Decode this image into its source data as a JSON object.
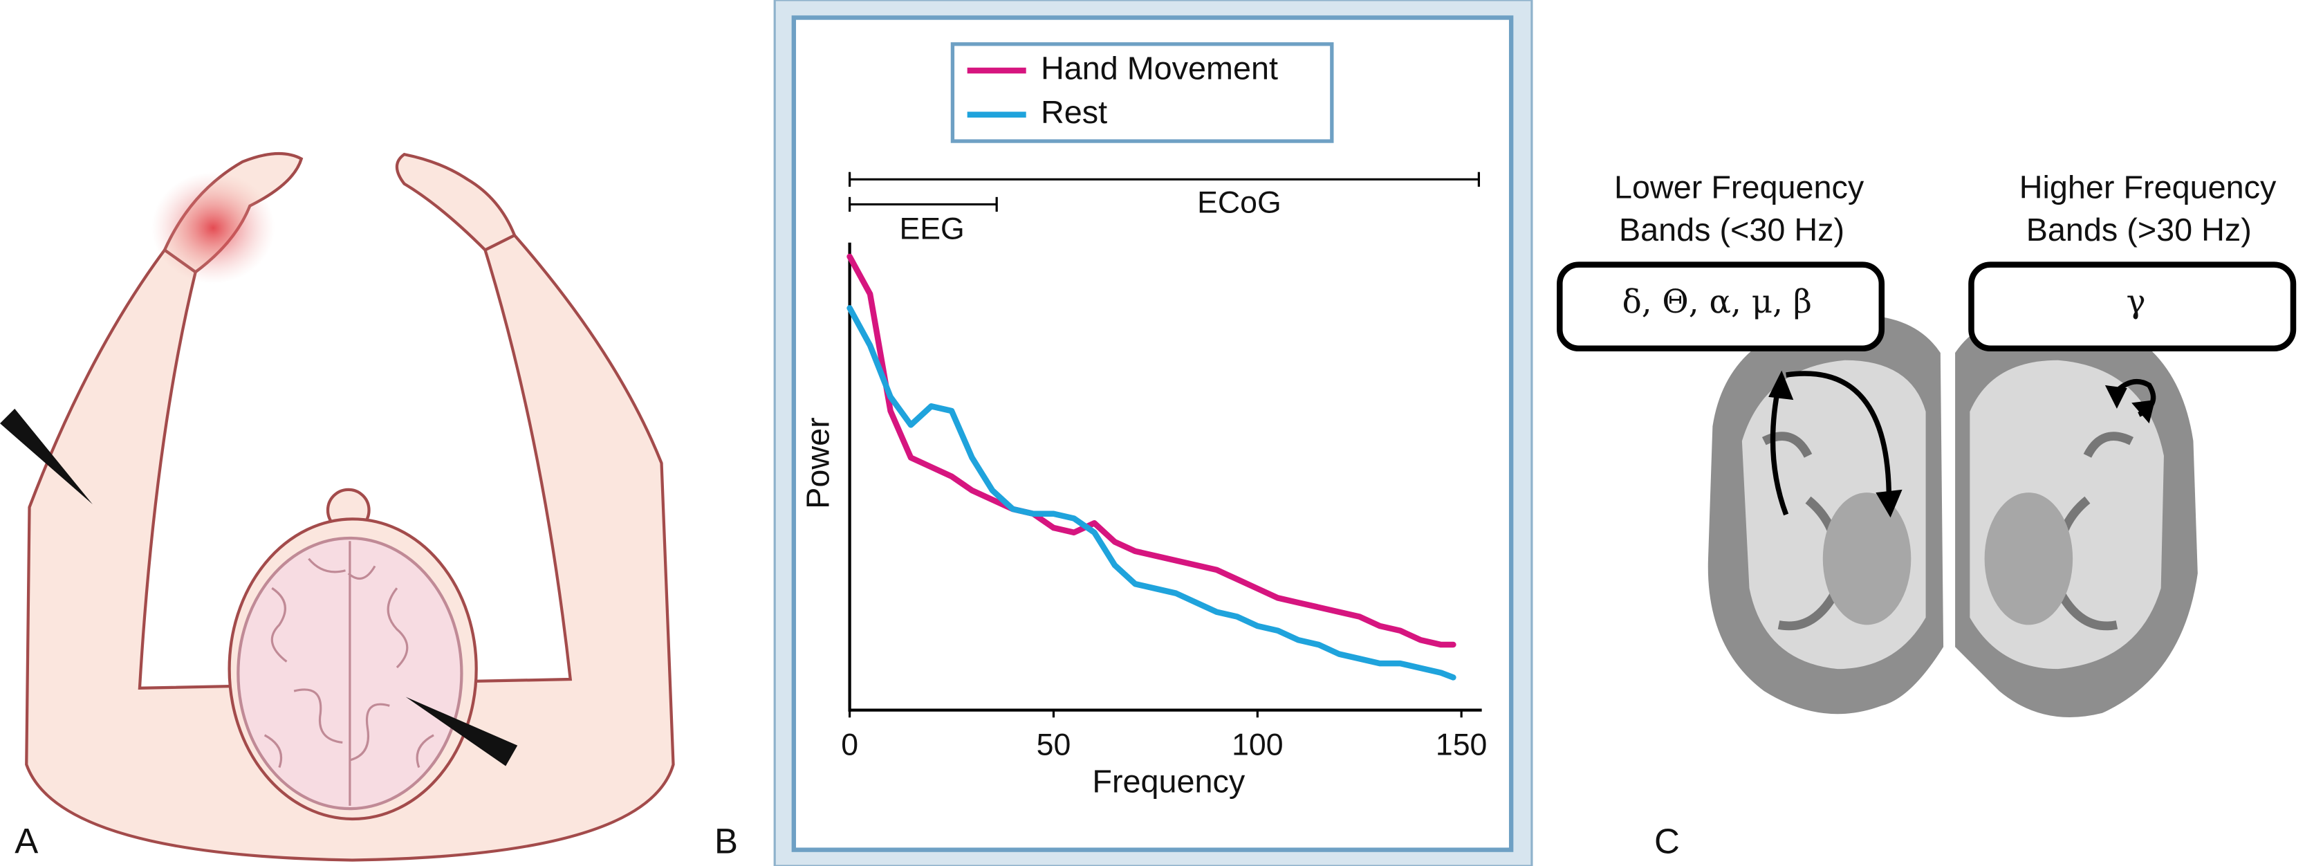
{
  "panel_labels": [
    "A",
    "B",
    "C"
  ],
  "chart_data": {
    "type": "line",
    "xlabel": "Frequency",
    "ylabel": "Power",
    "x": [
      0,
      5,
      10,
      15,
      20,
      25,
      30,
      35,
      40,
      45,
      50,
      55,
      60,
      65,
      70,
      75,
      80,
      85,
      90,
      95,
      100,
      105,
      110,
      115,
      120,
      125,
      130,
      135,
      140,
      145,
      148
    ],
    "xlim": [
      0,
      155
    ],
    "xticks": [
      0,
      50,
      100,
      150
    ],
    "ylim": [
      0,
      100
    ],
    "legend": "top",
    "annotations": [
      "EEG",
      "ECoG"
    ],
    "series": [
      {
        "name": "Hand Movement",
        "color": "#d6157f",
        "values": [
          97,
          89,
          64,
          54,
          52,
          50,
          47,
          45,
          43,
          42,
          39,
          38,
          40,
          36,
          34,
          33,
          32,
          31,
          30,
          28,
          26,
          24,
          23,
          22,
          21,
          20,
          18,
          17,
          15,
          14,
          14
        ]
      },
      {
        "name": "Rest",
        "color": "#1fa3dc",
        "values": [
          86,
          78,
          67,
          61,
          65,
          64,
          54,
          47,
          43,
          42,
          42,
          41,
          38,
          31,
          27,
          26,
          25,
          23,
          21,
          20,
          18,
          17,
          15,
          14,
          12,
          11,
          10,
          10,
          9,
          8,
          7
        ]
      }
    ]
  },
  "brain_panel": {
    "low": {
      "title": [
        "Lower Frequency",
        "Bands (<30 Hz)"
      ],
      "bands": "δ, Θ, α, μ, β"
    },
    "high": {
      "title": [
        "Higher Frequency",
        "Bands (>30 Hz)"
      ],
      "bands": "γ"
    }
  }
}
